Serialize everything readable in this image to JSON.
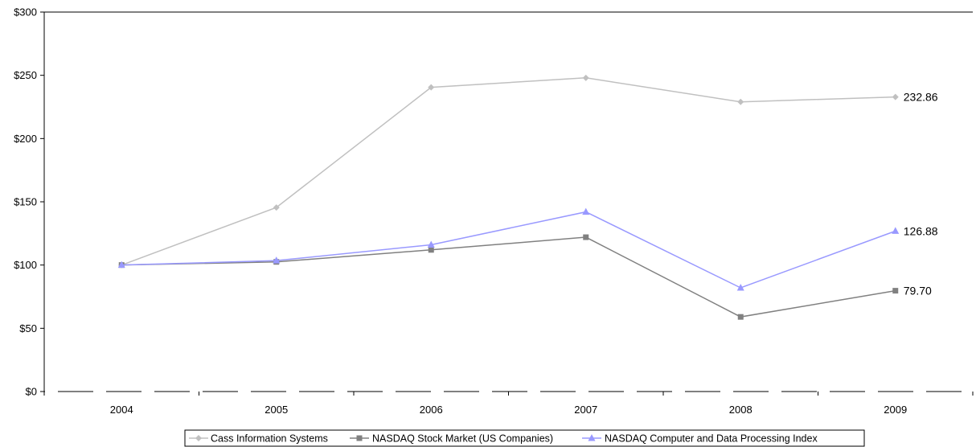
{
  "chart_data": {
    "type": "line",
    "title": "",
    "xlabel": "",
    "ylabel": "",
    "categories": [
      "2004",
      "2005",
      "2006",
      "2007",
      "2008",
      "2009"
    ],
    "ylim": [
      0,
      300
    ],
    "yticks": [
      0,
      50,
      100,
      150,
      200,
      250,
      300
    ],
    "ytick_labels": [
      "$0",
      "$50",
      "$100",
      "$150",
      "$200",
      "$250",
      "$300"
    ],
    "grid": false,
    "legend_position": "bottom",
    "series": [
      {
        "name": "Cass Information Systems",
        "values": [
          100,
          145.5,
          240.5,
          248,
          229,
          232.86
        ],
        "color": "#c0c0c0",
        "marker": "diamond",
        "end_label": "232.86"
      },
      {
        "name": "NASDAQ Stock Market (US Companies)",
        "values": [
          100,
          102.5,
          112,
          122,
          59,
          79.7
        ],
        "color": "#808080",
        "marker": "square",
        "end_label": "79.70"
      },
      {
        "name": "NASDAQ Computer and Data Processing Index",
        "values": [
          100,
          103.5,
          116,
          142,
          82,
          126.88
        ],
        "color": "#9999ff",
        "marker": "triangle",
        "end_label": "126.88"
      }
    ]
  }
}
